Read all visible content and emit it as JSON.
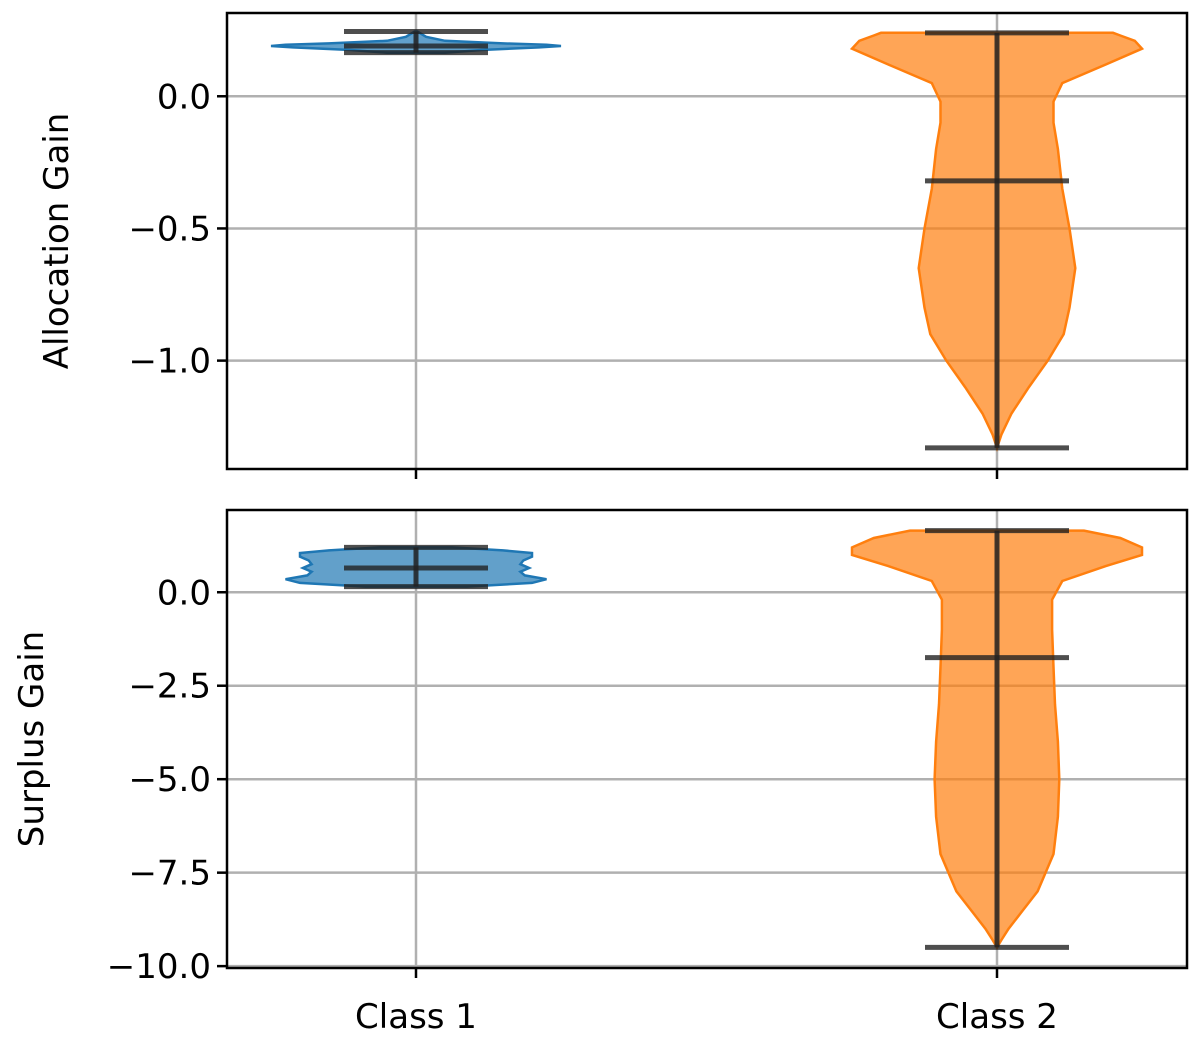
{
  "chart_data": [
    {
      "type": "violin",
      "ylabel": "Allocation Gain",
      "xlabel": "",
      "categories": [
        "Class 1",
        "Class 2"
      ],
      "show_x_tick_labels": false,
      "ylim": [
        -1.41,
        0.315
      ],
      "yticks": [
        0.0,
        -0.5,
        -1.0
      ],
      "ytick_labels": [
        "0.0",
        "−0.5",
        "−1.0"
      ],
      "grid": true,
      "series": [
        {
          "category": "Class 1",
          "color": "#1f77b4",
          "min": 0.165,
          "median": 0.19,
          "max": 0.245,
          "density": [
            [
              0.165,
              0.2
            ],
            [
              0.175,
              0.45
            ],
            [
              0.185,
              0.85
            ],
            [
              0.19,
              1.0
            ],
            [
              0.195,
              0.9
            ],
            [
              0.2,
              0.6
            ],
            [
              0.21,
              0.2
            ],
            [
              0.225,
              0.07
            ],
            [
              0.245,
              0.01
            ]
          ]
        },
        {
          "category": "Class 2",
          "color": "#ff7f0e",
          "min": -1.33,
          "median": -0.32,
          "max": 0.24,
          "density": [
            [
              -1.33,
              0.0
            ],
            [
              -1.28,
              0.03
            ],
            [
              -1.2,
              0.1
            ],
            [
              -1.1,
              0.22
            ],
            [
              -1.0,
              0.35
            ],
            [
              -0.9,
              0.46
            ],
            [
              -0.8,
              0.5
            ],
            [
              -0.65,
              0.54
            ],
            [
              -0.5,
              0.5
            ],
            [
              -0.35,
              0.45
            ],
            [
              -0.2,
              0.42
            ],
            [
              -0.1,
              0.39
            ],
            [
              -0.02,
              0.39
            ],
            [
              0.05,
              0.45
            ],
            [
              0.12,
              0.75
            ],
            [
              0.18,
              1.0
            ],
            [
              0.21,
              0.95
            ],
            [
              0.23,
              0.85
            ],
            [
              0.24,
              0.8
            ]
          ]
        }
      ]
    },
    {
      "type": "violin",
      "ylabel": "Surplus Gain",
      "xlabel": "",
      "categories": [
        "Class 1",
        "Class 2"
      ],
      "show_x_tick_labels": true,
      "ylim": [
        -10.05,
        2.2
      ],
      "yticks": [
        0.0,
        -2.5,
        -5.0,
        -7.5,
        -10.0
      ],
      "ytick_labels": [
        "0.0",
        "−2.5",
        "−5.0",
        "−7.5",
        "−10.0"
      ],
      "grid": true,
      "series": [
        {
          "category": "Class 1",
          "color": "#1f77b4",
          "min": 0.15,
          "median": 0.65,
          "max": 1.2,
          "density": [
            [
              0.15,
              0.35
            ],
            [
              0.25,
              0.8
            ],
            [
              0.35,
              0.9
            ],
            [
              0.45,
              0.75
            ],
            [
              0.55,
              0.72
            ],
            [
              0.65,
              0.78
            ],
            [
              0.75,
              0.72
            ],
            [
              0.85,
              0.74
            ],
            [
              0.95,
              0.8
            ],
            [
              1.05,
              0.8
            ],
            [
              1.12,
              0.6
            ],
            [
              1.2,
              0.25
            ]
          ]
        },
        {
          "category": "Class 2",
          "color": "#ff7f0e",
          "min": -9.5,
          "median": -1.75,
          "max": 1.65,
          "density": [
            [
              -9.5,
              0.0
            ],
            [
              -9.3,
              0.03
            ],
            [
              -9.0,
              0.08
            ],
            [
              -8.5,
              0.18
            ],
            [
              -8.0,
              0.28
            ],
            [
              -7.0,
              0.39
            ],
            [
              -6.0,
              0.42
            ],
            [
              -5.0,
              0.43
            ],
            [
              -4.0,
              0.42
            ],
            [
              -3.0,
              0.4
            ],
            [
              -2.0,
              0.39
            ],
            [
              -1.0,
              0.38
            ],
            [
              -0.2,
              0.38
            ],
            [
              0.3,
              0.45
            ],
            [
              0.7,
              0.75
            ],
            [
              1.0,
              1.0
            ],
            [
              1.2,
              1.0
            ],
            [
              1.45,
              0.85
            ],
            [
              1.65,
              0.6
            ]
          ]
        }
      ]
    }
  ]
}
